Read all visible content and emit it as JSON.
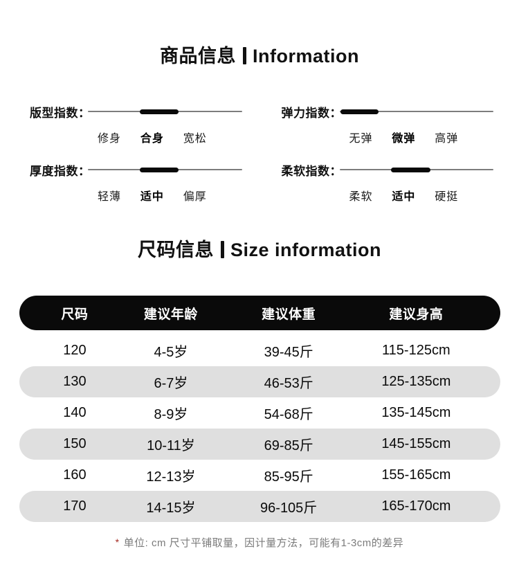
{
  "product_info": {
    "title": {
      "zh": "商品信息",
      "en": "Information"
    },
    "indices": [
      {
        "name": "fit",
        "title": "版型指数：",
        "options": [
          "修身",
          "合身",
          "宽松"
        ],
        "active_index": 1,
        "active_value": "合身",
        "bar_position": "center"
      },
      {
        "name": "elasticity",
        "title": "弹力指数：",
        "options": [
          "无弹",
          "微弹",
          "高弹"
        ],
        "active_index": 1,
        "active_value": "微弹",
        "bar_position": "left"
      },
      {
        "name": "thickness",
        "title": "厚度指数：",
        "options": [
          "轻薄",
          "适中",
          "偏厚"
        ],
        "active_index": 1,
        "active_value": "适中",
        "bar_position": "center"
      },
      {
        "name": "softness",
        "title": "柔软指数：",
        "options": [
          "柔软",
          "适中",
          "硬挺"
        ],
        "active_index": 1,
        "active_value": "适中",
        "bar_position": "center"
      }
    ]
  },
  "size_info": {
    "title": {
      "zh": "尺码信息",
      "en": "Size information"
    },
    "table": {
      "headers": [
        "尺码",
        "建议年龄",
        "建议体重",
        "建议身高"
      ],
      "rows": [
        [
          "120",
          "4-5岁",
          "39-45斤",
          "115-125cm"
        ],
        [
          "130",
          "6-7岁",
          "46-53斤",
          "125-135cm"
        ],
        [
          "140",
          "8-9岁",
          "54-68斤",
          "135-145cm"
        ],
        [
          "150",
          "10-11岁",
          "69-85斤",
          "145-155cm"
        ],
        [
          "160",
          "12-13岁",
          "85-95斤",
          "155-165cm"
        ],
        [
          "170",
          "14-15岁",
          "96-105斤",
          "165-170cm"
        ]
      ]
    }
  },
  "footnote": {
    "marker": "*",
    "text": "单位: cm 尺寸平铺取量，因计量方法，可能有1-3cm的差异"
  },
  "colors": {
    "header_bar": "#0a0a0a",
    "stripe_gray": "#dfdfdf",
    "slider_track": "#7d7d7d",
    "slider_thumb": "#0a0a0a",
    "footnote_gray": "#7b7b7b",
    "footnote_red": "#a52a22"
  }
}
